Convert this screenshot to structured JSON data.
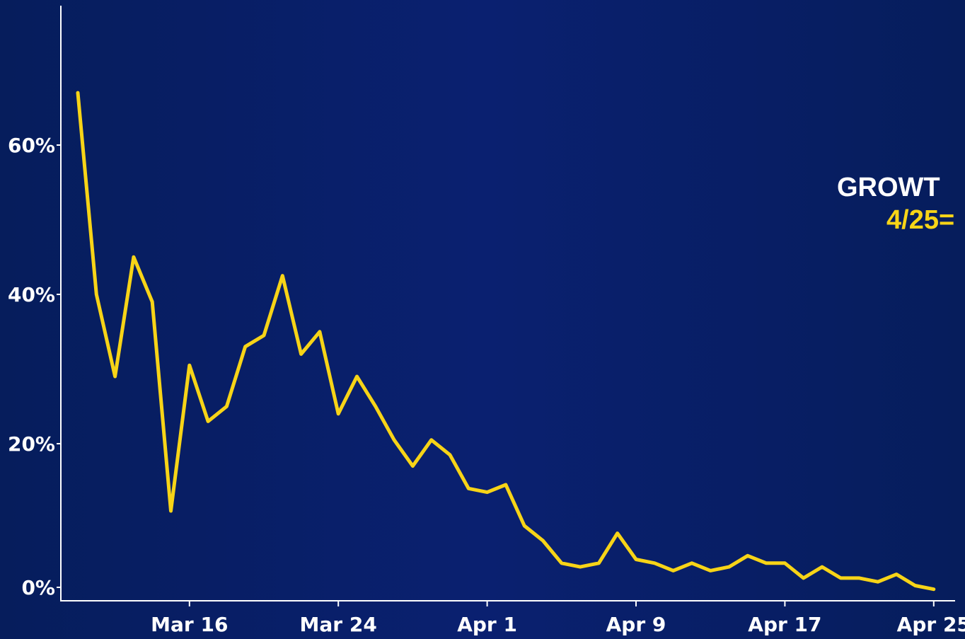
{
  "annotation": {
    "title": "GROWT",
    "value": "4/25="
  },
  "colors": {
    "line": "#f7d417",
    "axis": "#ffffff",
    "text": "#ffffff",
    "background": "#0a2070"
  },
  "chart_data": {
    "type": "line",
    "title": "",
    "xlabel": "",
    "ylabel": "",
    "x_ticks": [
      "Mar 16",
      "Mar 24",
      "Apr 1",
      "Apr 9",
      "Apr 17",
      "Apr 25"
    ],
    "y_ticks": [
      "0%",
      "20%",
      "40%",
      "60%"
    ],
    "ylim": [
      0,
      71
    ],
    "grid": false,
    "x": [
      "Mar 10",
      "Mar 11",
      "Mar 12",
      "Mar 13",
      "Mar 14",
      "Mar 15",
      "Mar 16",
      "Mar 17",
      "Mar 18",
      "Mar 19",
      "Mar 20",
      "Mar 21",
      "Mar 22",
      "Mar 23",
      "Mar 24",
      "Mar 25",
      "Mar 26",
      "Mar 27",
      "Mar 28",
      "Mar 29",
      "Mar 30",
      "Mar 31",
      "Apr 1",
      "Apr 2",
      "Apr 3",
      "Apr 4",
      "Apr 5",
      "Apr 6",
      "Apr 7",
      "Apr 8",
      "Apr 9",
      "Apr 10",
      "Apr 11",
      "Apr 12",
      "Apr 13",
      "Apr 14",
      "Apr 15",
      "Apr 16",
      "Apr 17",
      "Apr 18",
      "Apr 19",
      "Apr 20",
      "Apr 21",
      "Apr 22",
      "Apr 23",
      "Apr 24",
      "Apr 25"
    ],
    "series": [
      {
        "values": [
          67.0,
          40.0,
          29.0,
          45.0,
          39.0,
          11.0,
          30.5,
          23.0,
          25.0,
          33.0,
          34.5,
          42.5,
          32.0,
          35.0,
          24.0,
          29.0,
          25.0,
          20.5,
          17.0,
          20.5,
          18.5,
          14.0,
          13.5,
          14.5,
          9.0,
          7.0,
          4.0,
          3.5,
          4.0,
          8.0,
          4.5,
          4.0,
          3.0,
          4.0,
          3.0,
          3.5,
          5.0,
          4.0,
          4.0,
          2.0,
          3.5,
          2.0,
          2.0,
          1.5,
          2.5,
          1.0,
          0.5
        ]
      }
    ]
  }
}
